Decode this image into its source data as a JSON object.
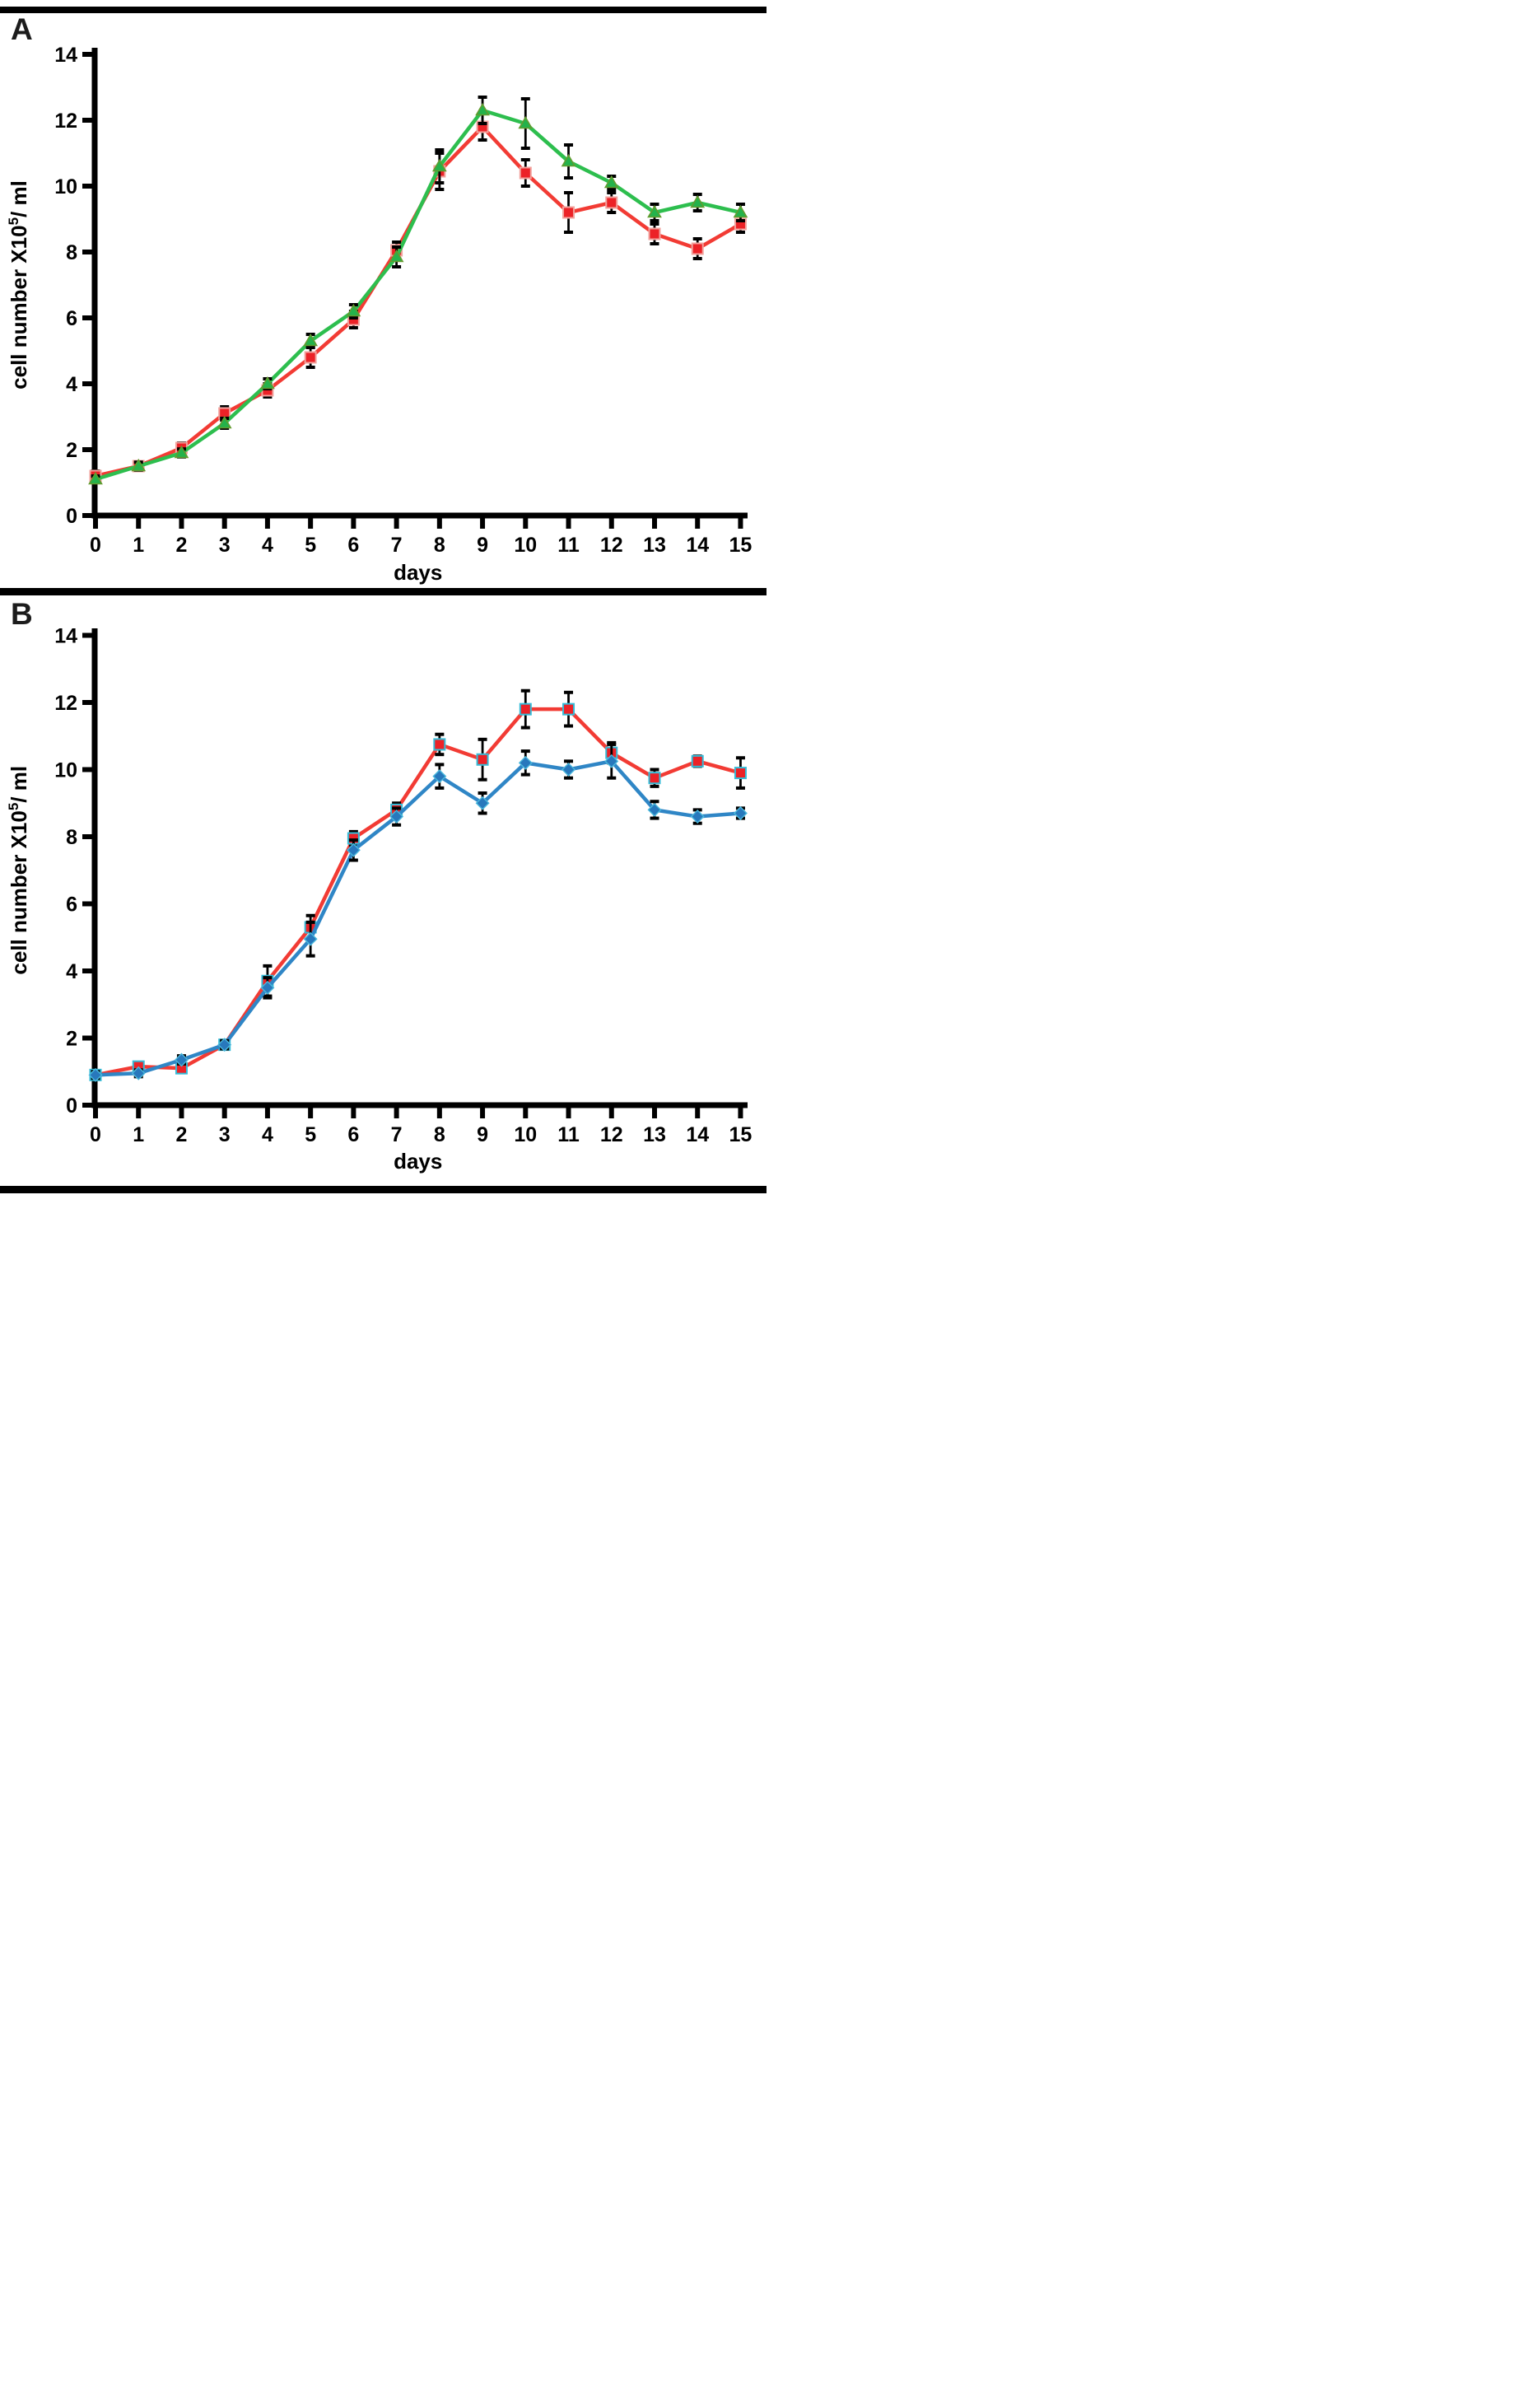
{
  "figure": {
    "panel_count": 2,
    "background_color": "#ffffff",
    "separator_color": "#000000"
  },
  "chart_data": [
    {
      "type": "line",
      "panel_label": "A",
      "xlabel": "days",
      "ylabel": "cell number X10^5/ ml",
      "ylabel_parts": {
        "base": "cell number X10",
        "sup": "5",
        "rest": "/ ml"
      },
      "x": [
        0,
        1,
        2,
        3,
        4,
        5,
        6,
        7,
        8,
        9,
        10,
        11,
        12,
        13,
        14,
        15
      ],
      "ylim": [
        0,
        14
      ],
      "yticks": [
        0,
        2,
        4,
        6,
        8,
        10,
        12,
        14
      ],
      "grid": false,
      "legend": "none",
      "series": [
        {
          "name": "red squares",
          "marker": "square",
          "values": [
            1.2,
            1.5,
            2.05,
            3.1,
            3.8,
            4.8,
            5.95,
            8.05,
            10.45,
            11.8,
            10.4,
            9.2,
            9.5,
            8.55,
            8.1,
            8.85
          ],
          "errors": [
            0.15,
            0.12,
            0.15,
            0.2,
            0.2,
            0.3,
            0.25,
            0.25,
            0.55,
            0.4,
            0.4,
            0.6,
            0.3,
            0.3,
            0.3,
            0.25
          ],
          "style": {
            "line": "#f23b34",
            "fill": "#ec2227",
            "stroke": "#f2a39e"
          }
        },
        {
          "name": "green triangles",
          "marker": "triangle",
          "values": [
            1.1,
            1.5,
            1.9,
            2.8,
            4.0,
            5.3,
            6.2,
            7.85,
            10.6,
            12.3,
            11.9,
            10.75,
            10.1,
            9.2,
            9.5,
            9.2
          ],
          "errors": [
            0.1,
            0.12,
            0.12,
            0.15,
            0.15,
            0.2,
            0.2,
            0.3,
            0.5,
            0.4,
            0.75,
            0.5,
            0.2,
            0.25,
            0.25,
            0.25
          ],
          "style": {
            "line": "#2dbe4e",
            "fill": "#24b24b",
            "stroke": "#639b2f"
          }
        }
      ]
    },
    {
      "type": "line",
      "panel_label": "B",
      "xlabel": "days",
      "ylabel": "cell number X10^5/ ml",
      "ylabel_parts": {
        "base": "cell number X10",
        "sup": "5",
        "rest": "/ ml"
      },
      "x": [
        0,
        1,
        2,
        3,
        4,
        5,
        6,
        7,
        8,
        9,
        10,
        11,
        12,
        13,
        14,
        15
      ],
      "ylim": [
        0,
        14
      ],
      "yticks": [
        0,
        2,
        4,
        6,
        8,
        10,
        12,
        14
      ],
      "grid": false,
      "legend": "none",
      "series": [
        {
          "name": "red squares",
          "marker": "square",
          "values": [
            0.9,
            1.15,
            1.1,
            1.8,
            3.7,
            5.3,
            7.95,
            8.8,
            10.75,
            10.3,
            11.8,
            11.8,
            10.5,
            9.75,
            10.25,
            9.9
          ],
          "errors": [
            0.1,
            0.1,
            0.1,
            0.12,
            0.45,
            0.35,
            0.2,
            0.2,
            0.3,
            0.6,
            0.55,
            0.5,
            0.3,
            0.25,
            0.15,
            0.45
          ],
          "style": {
            "line": "#f23b34",
            "fill": "#ec2227",
            "stroke": "#35bcd8"
          }
        },
        {
          "name": "blue diamonds",
          "marker": "diamond",
          "values": [
            0.9,
            0.95,
            1.35,
            1.8,
            3.5,
            4.95,
            7.6,
            8.6,
            9.8,
            9.0,
            10.2,
            10.0,
            10.25,
            8.8,
            8.6,
            8.7
          ],
          "errors": [
            0.1,
            0.1,
            0.12,
            0.12,
            0.3,
            0.5,
            0.3,
            0.25,
            0.35,
            0.3,
            0.35,
            0.25,
            0.5,
            0.25,
            0.2,
            0.15
          ],
          "style": {
            "line": "#2f86c6",
            "fill": "#2878bc",
            "stroke": "#49b8dc"
          }
        }
      ]
    }
  ]
}
